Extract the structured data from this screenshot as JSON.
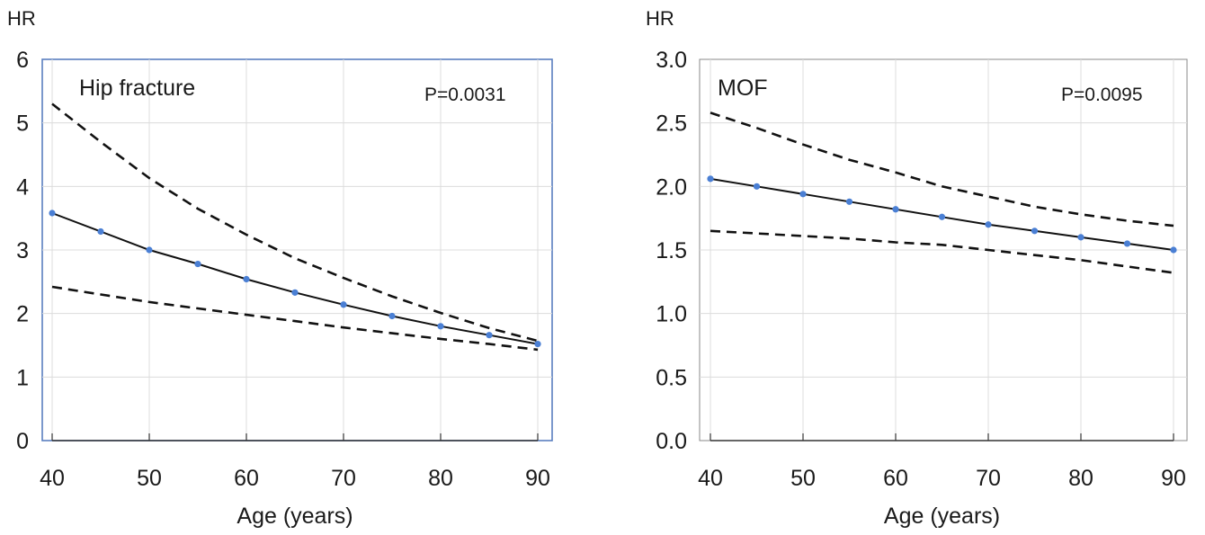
{
  "chart_data": [
    {
      "type": "line",
      "title": "Hip fracture",
      "annotation": "P=0.0031",
      "ylabel": "HR",
      "xlabel": "Age (years)",
      "xlim": [
        40,
        90
      ],
      "ylim": [
        0,
        6
      ],
      "x_ticks": [
        "40",
        "50",
        "60",
        "70",
        "80",
        "90"
      ],
      "y_ticks": [
        "0",
        "1",
        "2",
        "3",
        "4",
        "5",
        "6"
      ],
      "grid": true,
      "frame_color": "#5a7fbf",
      "series": [
        {
          "style": "solid",
          "x": [
            40,
            45,
            50,
            55,
            60,
            65,
            70,
            75,
            80,
            85,
            90
          ],
          "y": [
            3.58,
            3.29,
            3.0,
            2.78,
            2.54,
            2.33,
            2.14,
            1.96,
            1.8,
            1.66,
            1.52
          ]
        },
        {
          "style": "dashed",
          "x": [
            40,
            45,
            50,
            55,
            60,
            65,
            70,
            75,
            80,
            85,
            90
          ],
          "y": [
            5.3,
            4.7,
            4.13,
            3.65,
            3.24,
            2.87,
            2.56,
            2.27,
            2.01,
            1.77,
            1.57
          ]
        },
        {
          "style": "dashed",
          "x": [
            40,
            45,
            50,
            55,
            60,
            65,
            70,
            75,
            80,
            85,
            90
          ],
          "y": [
            2.42,
            2.3,
            2.18,
            2.08,
            1.98,
            1.88,
            1.78,
            1.69,
            1.6,
            1.52,
            1.43
          ]
        }
      ]
    },
    {
      "type": "line",
      "title": "MOF",
      "annotation": "P=0.0095",
      "ylabel": "HR",
      "xlabel": "Age (years)",
      "xlim": [
        40,
        90
      ],
      "ylim": [
        0,
        3
      ],
      "x_ticks": [
        "40",
        "50",
        "60",
        "70",
        "80",
        "90"
      ],
      "y_ticks": [
        "0.0",
        "0.5",
        "1.0",
        "1.5",
        "2.0",
        "2.5",
        "3.0"
      ],
      "grid": true,
      "frame_color": "#888888",
      "series": [
        {
          "style": "solid",
          "x": [
            40,
            45,
            50,
            55,
            60,
            65,
            70,
            75,
            80,
            85,
            90
          ],
          "y": [
            2.06,
            2.0,
            1.94,
            1.88,
            1.82,
            1.76,
            1.7,
            1.65,
            1.6,
            1.55,
            1.5
          ]
        },
        {
          "style": "dashed",
          "x": [
            40,
            45,
            50,
            55,
            60,
            65,
            70,
            75,
            80,
            85,
            90
          ],
          "y": [
            2.58,
            2.46,
            2.33,
            2.21,
            2.11,
            2.0,
            1.92,
            1.84,
            1.78,
            1.73,
            1.69
          ]
        },
        {
          "style": "dashed",
          "x": [
            40,
            45,
            50,
            55,
            60,
            65,
            70,
            75,
            80,
            85,
            90
          ],
          "y": [
            1.65,
            1.63,
            1.61,
            1.59,
            1.56,
            1.54,
            1.5,
            1.46,
            1.42,
            1.37,
            1.32
          ]
        }
      ]
    }
  ]
}
